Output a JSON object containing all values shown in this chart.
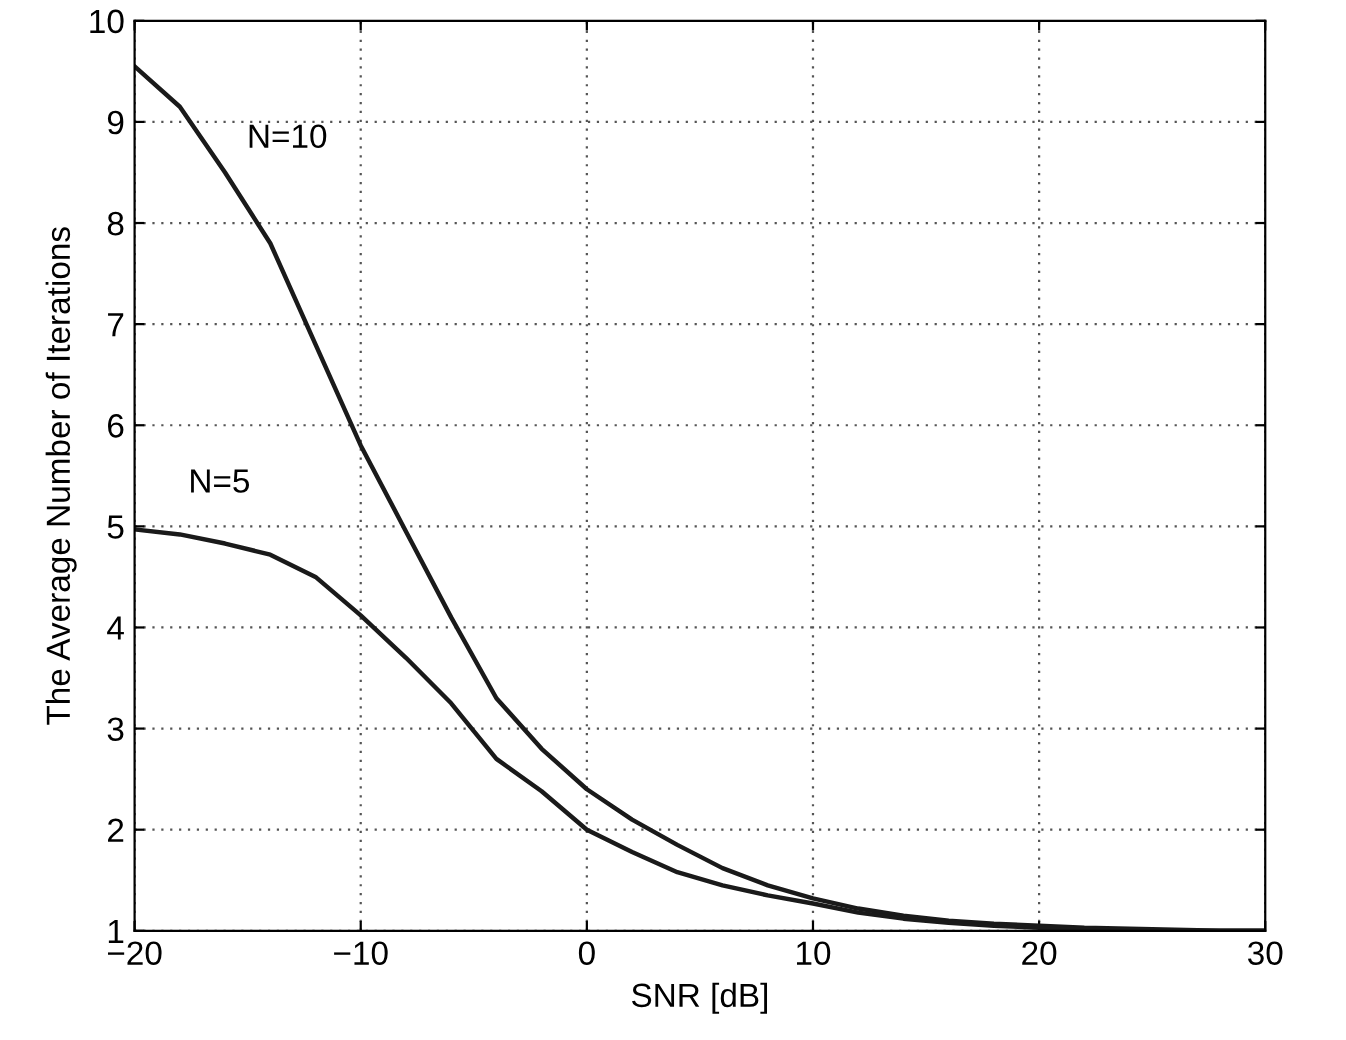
{
  "chart_data": {
    "type": "line",
    "xlabel": "SNR [dB]",
    "ylabel": "The Average Number of Iterations",
    "x": [
      -20,
      -18,
      -16,
      -14,
      -12,
      -10,
      -8,
      -6,
      -4,
      -2,
      0,
      2,
      4,
      6,
      8,
      10,
      12,
      14,
      16,
      18,
      20,
      22,
      24,
      26,
      28,
      30
    ],
    "series": [
      {
        "name": "N=10",
        "color": "#1a1a1a",
        "values": [
          9.55,
          9.15,
          8.5,
          7.8,
          6.8,
          5.8,
          4.95,
          4.1,
          3.3,
          2.8,
          2.4,
          2.1,
          1.85,
          1.62,
          1.45,
          1.32,
          1.22,
          1.15,
          1.1,
          1.07,
          1.05,
          1.03,
          1.02,
          1.01,
          1.0,
          1.0
        ]
      },
      {
        "name": "N=5",
        "color": "#1a1a1a",
        "values": [
          4.97,
          4.92,
          4.83,
          4.72,
          4.5,
          4.12,
          3.7,
          3.25,
          2.7,
          2.38,
          2.0,
          1.78,
          1.58,
          1.45,
          1.35,
          1.27,
          1.18,
          1.12,
          1.08,
          1.05,
          1.03,
          1.02,
          1.01,
          1.0,
          1.0,
          1.0
        ]
      }
    ],
    "xlim": [
      -20,
      30
    ],
    "xticks": [
      {
        "value": -20,
        "label": "−20"
      },
      {
        "value": -10,
        "label": "−10"
      },
      0,
      10,
      20,
      30
    ],
    "ylim": [
      1,
      10
    ],
    "yticks": [
      1,
      2,
      3,
      4,
      5,
      6,
      7,
      8,
      9,
      10
    ],
    "grid": true,
    "marker": "none",
    "line_style": "solid",
    "legend": false
  }
}
